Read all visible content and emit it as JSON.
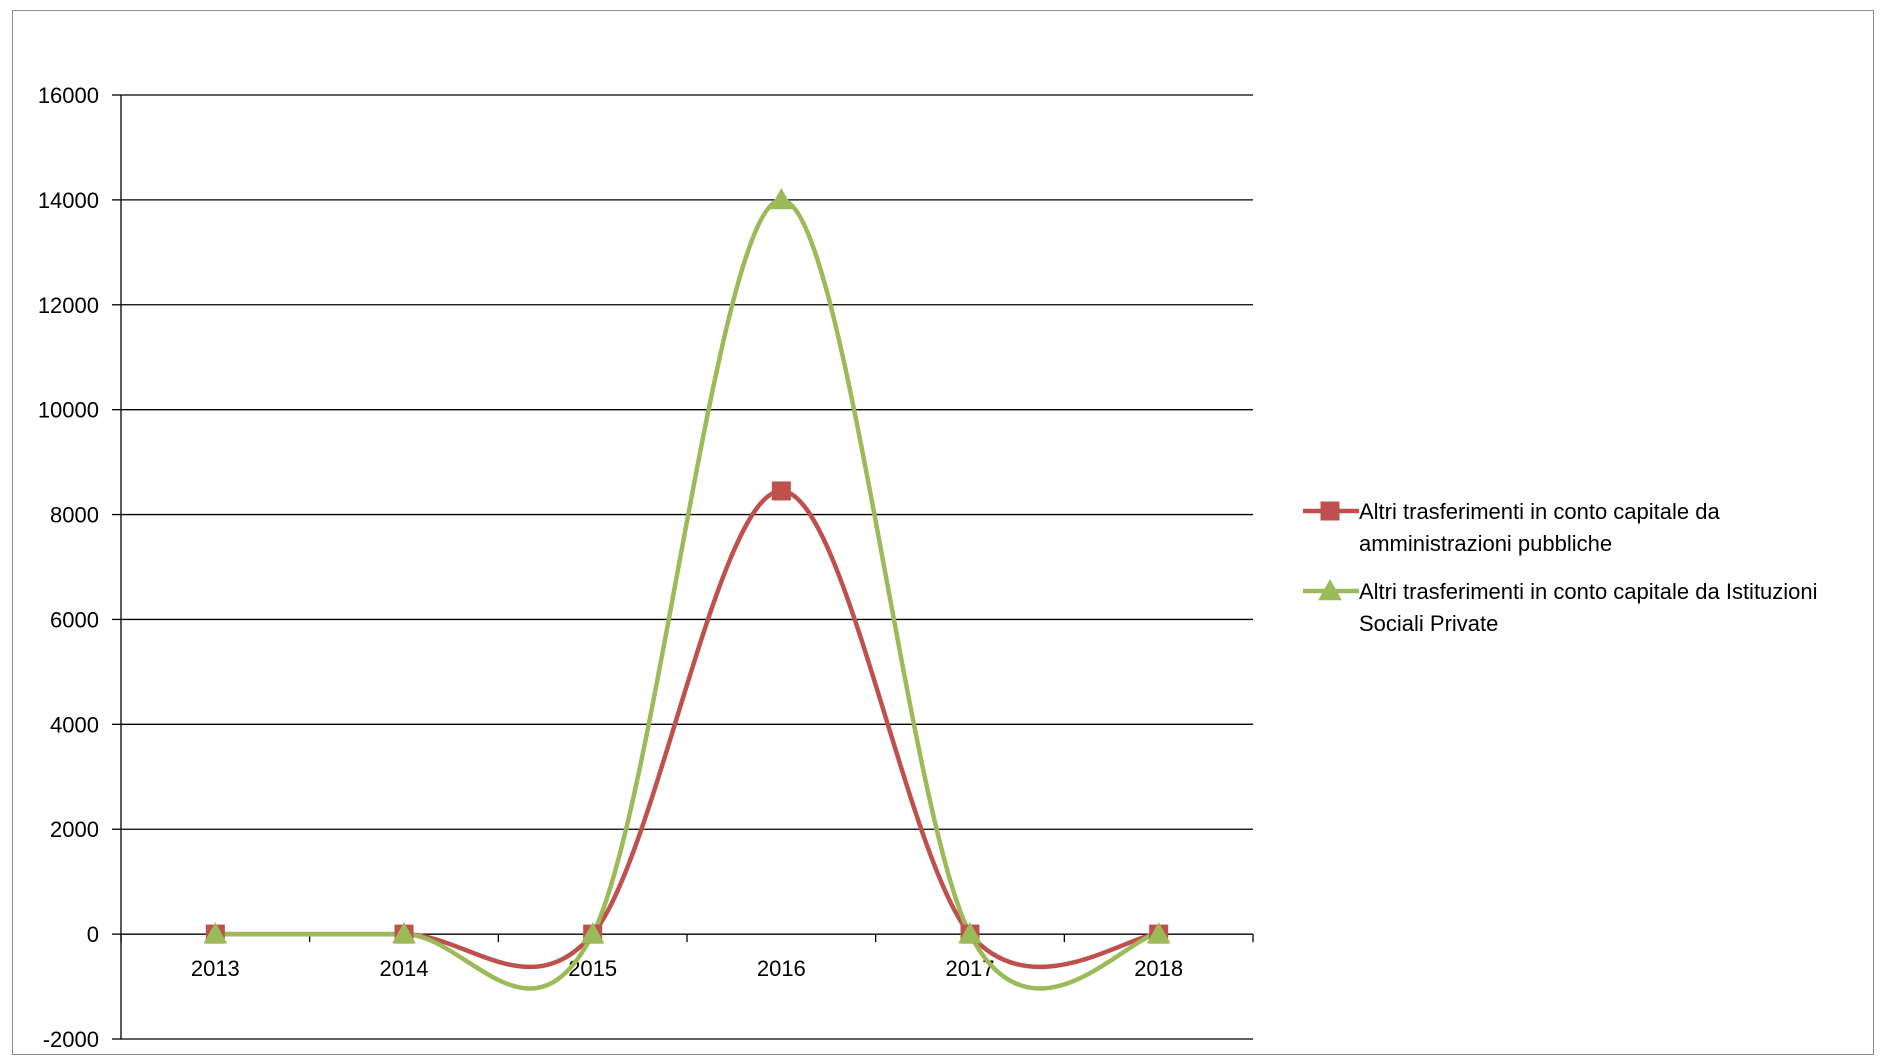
{
  "chart_data": {
    "type": "line",
    "title": "",
    "xlabel": "",
    "ylabel": "",
    "categories": [
      "2013",
      "2014",
      "2015",
      "2016",
      "2017",
      "2018"
    ],
    "ylim": [
      -2000,
      16000
    ],
    "yticks": [
      -2000,
      0,
      2000,
      4000,
      6000,
      8000,
      10000,
      12000,
      14000,
      16000
    ],
    "grid": "horizontal",
    "smoothed": true,
    "legend_position": "right",
    "series": [
      {
        "name": "Altri trasferimenti in conto capitale da amministrazioni pubbliche",
        "legend_lines": [
          "Altri trasferimenti in conto capitale da",
          "amministrazioni pubbliche"
        ],
        "values": [
          0,
          0,
          0,
          8450,
          0,
          0
        ],
        "color": "#c0504d",
        "marker": "square"
      },
      {
        "name": "Altri trasferimenti in conto capitale da Istituzioni Sociali Private",
        "legend_lines": [
          "Altri trasferimenti in conto capitale da Istituzioni",
          "Sociali Private"
        ],
        "values": [
          0,
          0,
          0,
          14000,
          0,
          0
        ],
        "color": "#9bbb59",
        "marker": "triangle"
      }
    ]
  }
}
